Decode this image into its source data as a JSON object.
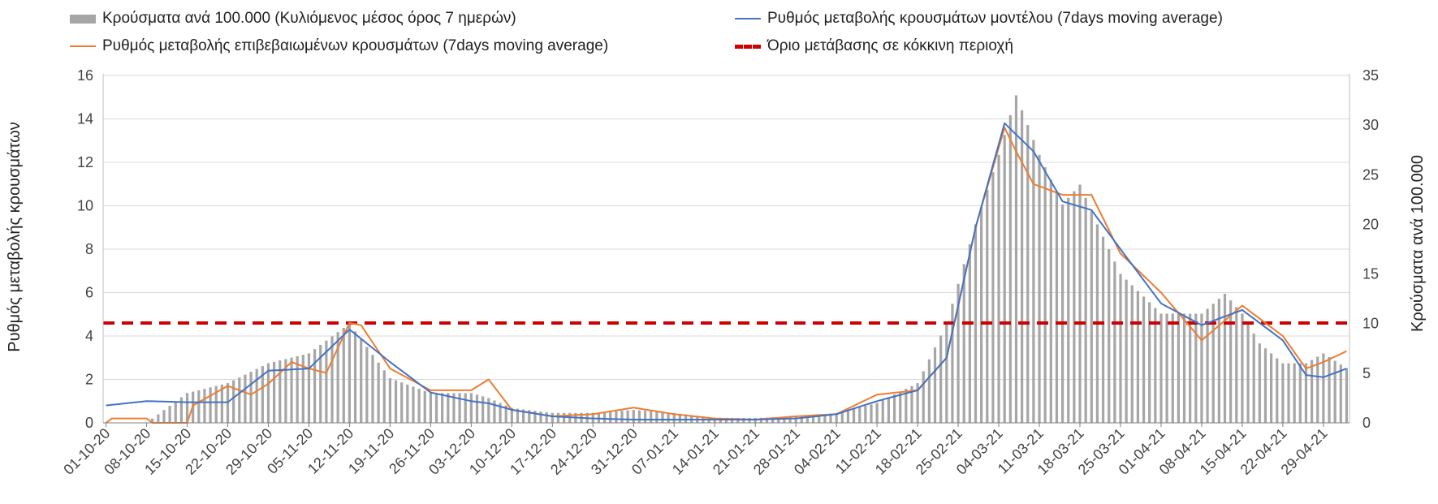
{
  "chart_data": {
    "type": "bar",
    "legend": {
      "bars": "Κρούσματα ανά 100.000 (Κυλιόμενος μέσος όρος 7 ημερών)",
      "model": "Ρυθμός μεταβολής κρουσμάτων μοντέλου (7days moving average)",
      "confirmed": "Ρυθμός μεταβολής επιβεβαιωμένων κρουσμάτων (7days moving average)",
      "threshold": "Όριο μετάβασης σε κόκκινη περιοχή"
    },
    "left_axis": {
      "label": "Ρυθμός μεταβολής κρουσμάτων",
      "min": 0,
      "max": 16,
      "ticks": [
        "0",
        "2",
        "4",
        "6",
        "8",
        "10",
        "12",
        "14",
        "16"
      ]
    },
    "right_axis": {
      "label": "Κρούσματα ανά 100.000",
      "min": 0,
      "max": 35,
      "ticks": [
        "0",
        "5",
        "10",
        "15",
        "20",
        "25",
        "30",
        "35"
      ]
    },
    "x_tick_labels": [
      "01-10-20",
      "08-10-20",
      "15-10-20",
      "22-10-20",
      "29-10-20",
      "05-11-20",
      "12-11-20",
      "19-11-20",
      "26-11-20",
      "03-12-20",
      "10-12-20",
      "17-12-20",
      "24-12-20",
      "31-12-20",
      "07-01-21",
      "14-01-21",
      "21-01-21",
      "28-01-21",
      "04-02-21",
      "11-02-21",
      "18-02-21",
      "25-02-21",
      "04-03-21",
      "11-03-21",
      "18-03-21",
      "25-03-21",
      "01-04-21",
      "08-04-21",
      "15-04-21",
      "22-04-21",
      "29-04-21"
    ],
    "day_count": 215,
    "threshold": 4.6,
    "grid": true,
    "colors": {
      "bars": "#a6a6a6",
      "model": "#4472c4",
      "confirmed": "#ed7d31",
      "threshold": "#d00000",
      "grid": "#d9d9d9"
    },
    "bar_keypoints": [
      [
        0,
        0
      ],
      [
        7,
        0
      ],
      [
        14,
        3
      ],
      [
        21,
        4
      ],
      [
        28,
        6
      ],
      [
        35,
        7
      ],
      [
        42,
        10
      ],
      [
        49,
        4.5
      ],
      [
        56,
        3
      ],
      [
        63,
        3
      ],
      [
        66,
        2.5
      ],
      [
        70,
        1.5
      ],
      [
        77,
        1
      ],
      [
        84,
        1
      ],
      [
        91,
        1.3
      ],
      [
        98,
        1
      ],
      [
        105,
        0.5
      ],
      [
        112,
        0.5
      ],
      [
        119,
        0.6
      ],
      [
        126,
        1
      ],
      [
        133,
        2
      ],
      [
        140,
        4
      ],
      [
        145,
        10
      ],
      [
        150,
        20
      ],
      [
        154,
        27
      ],
      [
        157,
        33
      ],
      [
        161,
        27
      ],
      [
        165,
        22
      ],
      [
        168,
        24
      ],
      [
        171,
        20
      ],
      [
        175,
        15
      ],
      [
        182,
        11
      ],
      [
        189,
        11
      ],
      [
        193,
        13
      ],
      [
        196,
        11
      ],
      [
        199,
        8
      ],
      [
        203,
        6
      ],
      [
        207,
        6
      ],
      [
        210,
        7
      ],
      [
        214,
        5.5
      ]
    ],
    "model_keypoints": [
      [
        0,
        0.8
      ],
      [
        7,
        1
      ],
      [
        14,
        0.95
      ],
      [
        21,
        0.95
      ],
      [
        28,
        2.4
      ],
      [
        35,
        2.5
      ],
      [
        42,
        4.3
      ],
      [
        49,
        2.8
      ],
      [
        56,
        1.4
      ],
      [
        63,
        1
      ],
      [
        66,
        0.9
      ],
      [
        70,
        0.6
      ],
      [
        77,
        0.3
      ],
      [
        84,
        0.2
      ],
      [
        91,
        0.15
      ],
      [
        98,
        0.15
      ],
      [
        105,
        0.15
      ],
      [
        112,
        0.15
      ],
      [
        119,
        0.2
      ],
      [
        126,
        0.4
      ],
      [
        133,
        1
      ],
      [
        140,
        1.5
      ],
      [
        145,
        3
      ],
      [
        150,
        9
      ],
      [
        155,
        13.8
      ],
      [
        160,
        12.5
      ],
      [
        165,
        10.2
      ],
      [
        170,
        9.8
      ],
      [
        175,
        8
      ],
      [
        182,
        5.5
      ],
      [
        189,
        4.5
      ],
      [
        196,
        5.2
      ],
      [
        203,
        3.8
      ],
      [
        207,
        2.2
      ],
      [
        210,
        2.1
      ],
      [
        214,
        2.5
      ]
    ],
    "confirmed_keypoints": [
      [
        0,
        0
      ],
      [
        1,
        0.2
      ],
      [
        7,
        0.2
      ],
      [
        8,
        0
      ],
      [
        14,
        0
      ],
      [
        15,
        0.8
      ],
      [
        21,
        1.7
      ],
      [
        25,
        1.3
      ],
      [
        28,
        1.8
      ],
      [
        32,
        2.8
      ],
      [
        35,
        2.5
      ],
      [
        38,
        2.3
      ],
      [
        42,
        4.6
      ],
      [
        44,
        4.5
      ],
      [
        49,
        2.5
      ],
      [
        56,
        1.5
      ],
      [
        63,
        1.5
      ],
      [
        66,
        2
      ],
      [
        70,
        0.6
      ],
      [
        77,
        0.3
      ],
      [
        84,
        0.4
      ],
      [
        91,
        0.7
      ],
      [
        98,
        0.4
      ],
      [
        105,
        0.2
      ],
      [
        112,
        0.15
      ],
      [
        119,
        0.3
      ],
      [
        126,
        0.4
      ],
      [
        133,
        1.3
      ],
      [
        140,
        1.5
      ],
      [
        145,
        3
      ],
      [
        150,
        9
      ],
      [
        155,
        13.6
      ],
      [
        157,
        12.5
      ],
      [
        160,
        11
      ],
      [
        165,
        10.5
      ],
      [
        170,
        10.5
      ],
      [
        175,
        7.8
      ],
      [
        182,
        6
      ],
      [
        189,
        3.8
      ],
      [
        196,
        5.4
      ],
      [
        203,
        4
      ],
      [
        207,
        2.5
      ],
      [
        210,
        2.8
      ],
      [
        214,
        3.3
      ]
    ]
  }
}
